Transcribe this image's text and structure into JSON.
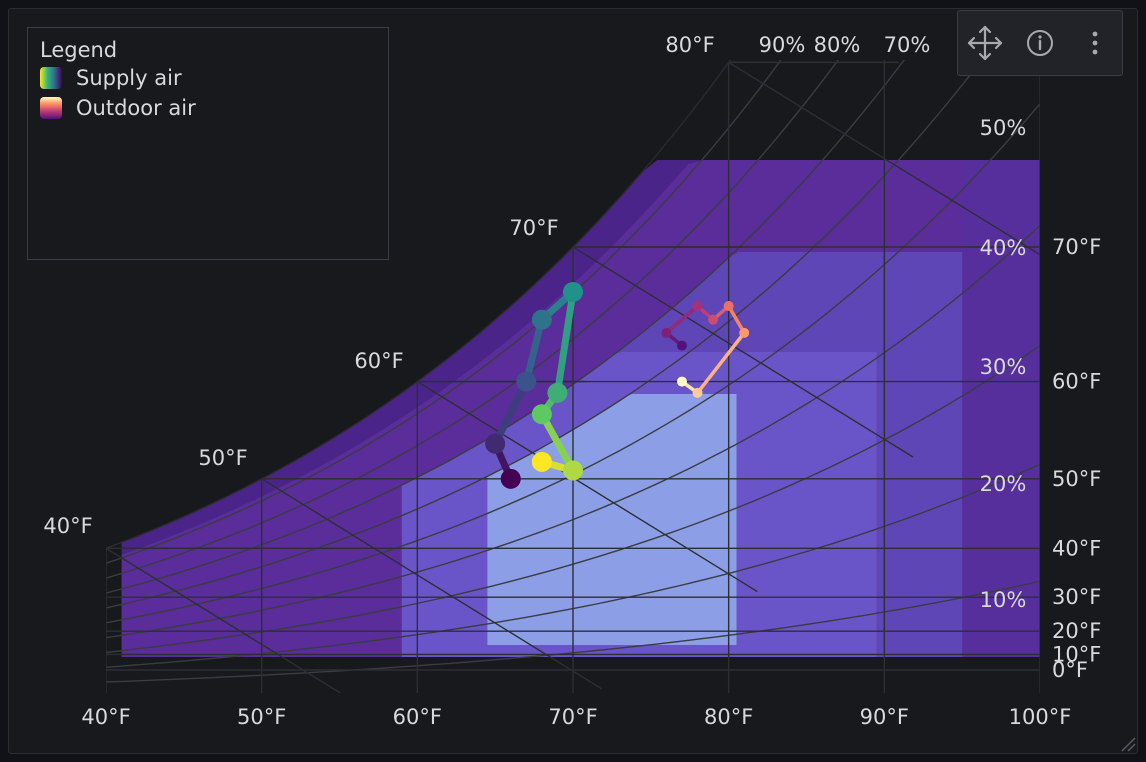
{
  "legend": {
    "title": "Legend",
    "items": [
      {
        "label": "Supply air"
      },
      {
        "label": "Outdoor air"
      }
    ]
  },
  "toolbar": {
    "icons": [
      "move-icon",
      "info-icon",
      "more-vertical-icon"
    ]
  },
  "colors": {
    "background": "#18191d",
    "grid": "#3b3c42",
    "zone_outer": "#5a2d9a",
    "zone_mid": "#6a55c8",
    "zone_inner": "#8c9ee6",
    "text": "#d8d9dc"
  },
  "chart_data": {
    "type": "line",
    "chart_kind": "psychrometric",
    "xlabel": "",
    "ylabel": "",
    "x_ticks": [
      "40°F",
      "50°F",
      "60°F",
      "70°F",
      "80°F",
      "90°F",
      "100°F"
    ],
    "xlim": [
      40,
      100
    ],
    "right_axis_ticks": [
      "0°F",
      "10°F",
      "20°F",
      "30°F",
      "40°F",
      "50°F",
      "60°F",
      "70°F"
    ],
    "saturation_labels": [
      "40°F",
      "50°F",
      "60°F",
      "70°F",
      "80°F"
    ],
    "rh_labels_top": [
      "90%",
      "80%",
      "70%"
    ],
    "rh_labels_right": [
      "50%",
      "40%",
      "30%",
      "20%",
      "10%"
    ],
    "rh_curves": [
      10,
      20,
      30,
      40,
      50,
      60,
      70,
      80,
      90
    ],
    "series": [
      {
        "name": "Supply air",
        "points": [
          [
            66,
            50
          ],
          [
            65,
            54
          ],
          [
            67,
            60
          ],
          [
            68,
            65
          ],
          [
            70,
            67
          ],
          [
            69,
            59
          ],
          [
            68,
            57
          ],
          [
            70,
            51
          ],
          [
            68,
            52
          ]
        ]
      },
      {
        "name": "Outdoor air",
        "points": [
          [
            77,
            63
          ],
          [
            76,
            64
          ],
          [
            78,
            66
          ],
          [
            79,
            65
          ],
          [
            80,
            66
          ],
          [
            81,
            64
          ],
          [
            78,
            59
          ],
          [
            77,
            60
          ]
        ]
      }
    ]
  }
}
